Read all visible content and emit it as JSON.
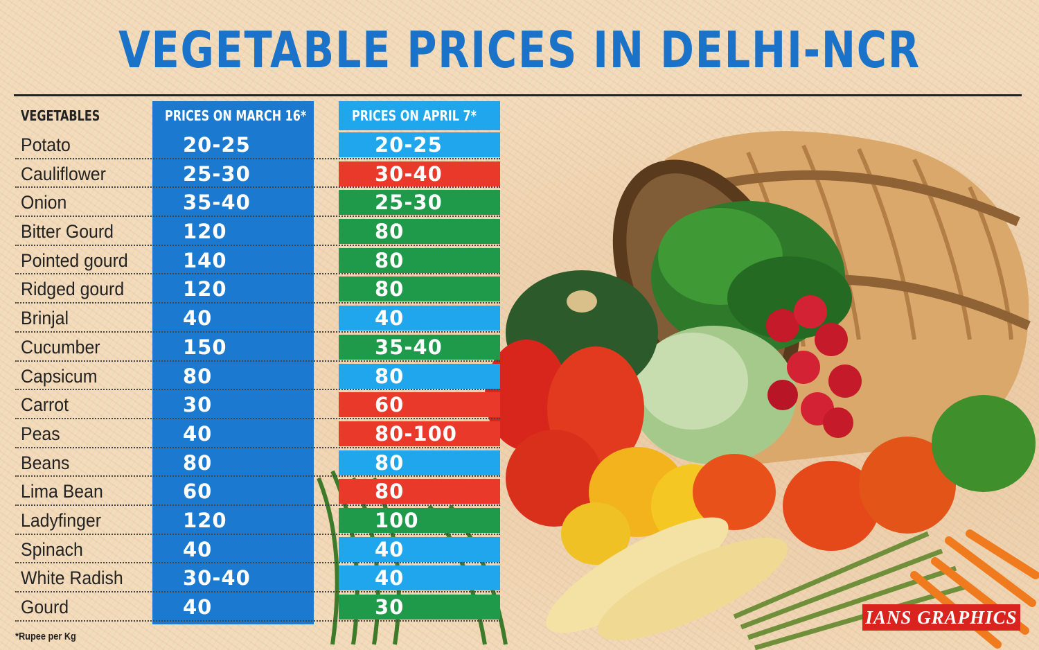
{
  "title": "VEGETABLE PRICES IN DELHI-NCR",
  "colors": {
    "title": "#1a73c8",
    "march_column": "#1b7ad0",
    "april_same": "#20a6ec",
    "april_up": "#e8392b",
    "april_down": "#1f9a4a"
  },
  "footnote": "*Rupee per Kg",
  "credit": "IANS GRAPHICS",
  "chart_data": {
    "type": "table",
    "columns": [
      "VEGETABLES",
      "PRICES ON MARCH 16*",
      "PRICES ON APRIL 7*"
    ],
    "rows": [
      {
        "vegetable": "Potato",
        "march": "20-25",
        "april": "20-25",
        "change": "same"
      },
      {
        "vegetable": "Cauliflower",
        "march": "25-30",
        "april": "30-40",
        "change": "up"
      },
      {
        "vegetable": "Onion",
        "march": "35-40",
        "april": "25-30",
        "change": "down"
      },
      {
        "vegetable": "Bitter Gourd",
        "march": "120",
        "april": "80",
        "change": "down"
      },
      {
        "vegetable": "Pointed gourd",
        "march": "140",
        "april": "80",
        "change": "down"
      },
      {
        "vegetable": "Ridged gourd",
        "march": "120",
        "april": "80",
        "change": "down"
      },
      {
        "vegetable": "Brinjal",
        "march": "40",
        "april": "40",
        "change": "same"
      },
      {
        "vegetable": "Cucumber",
        "march": "150",
        "april": "35-40",
        "change": "down"
      },
      {
        "vegetable": "Capsicum",
        "march": "80",
        "april": "80",
        "change": "same"
      },
      {
        "vegetable": "Carrot",
        "march": "30",
        "april": "60",
        "change": "up"
      },
      {
        "vegetable": "Peas",
        "march": "40",
        "april": "80-100",
        "change": "up"
      },
      {
        "vegetable": "Beans",
        "march": "80",
        "april": "80",
        "change": "same"
      },
      {
        "vegetable": "Lima Bean",
        "march": "60",
        "april": "80",
        "change": "up"
      },
      {
        "vegetable": "Ladyfinger",
        "march": "120",
        "april": "100",
        "change": "down"
      },
      {
        "vegetable": "Spinach",
        "march": "40",
        "april": "40",
        "change": "same"
      },
      {
        "vegetable": "White Radish",
        "march": "30-40",
        "april": "40",
        "change": "same"
      },
      {
        "vegetable": "Gourd",
        "march": "40",
        "april": "30",
        "change": "down"
      }
    ]
  }
}
